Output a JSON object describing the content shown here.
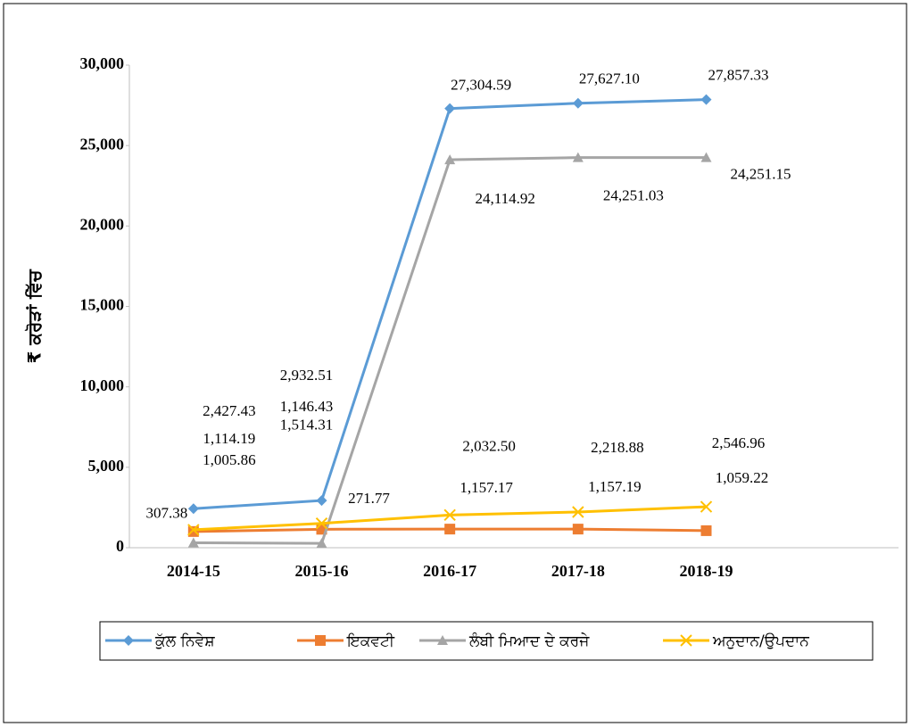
{
  "chart_data": {
    "type": "line",
    "ylabel": "₹ ਕਰੋੜਾਂ ਵਿੱਚ",
    "categories": [
      "2014-15",
      "2015-16",
      "2016-17",
      "2017-18",
      "2018-19",
      null
    ],
    "series": [
      {
        "name": "ਕੁੱਲ ਨਿਵੇਸ਼",
        "color": "#5b9bd5",
        "marker": "diamond",
        "values": [
          2427.43,
          2932.51,
          27304.59,
          27627.1,
          27857.33,
          null
        ],
        "value_labels": [
          "2,427.43",
          "2,932.51",
          "27,304.59",
          "27,627.10",
          "27,857.33",
          null
        ]
      },
      {
        "name": "ਇਕਵਟੀ",
        "color": "#ed7d31",
        "marker": "square",
        "values": [
          1005.86,
          1146.43,
          1157.17,
          1157.19,
          1059.22,
          null
        ],
        "value_labels": [
          "1,005.86",
          "1,146.43",
          "1,157.17",
          "1,157.19",
          "1,059.22",
          null
        ]
      },
      {
        "name": "ਲੰਬੀ ਮਿਆਦ ਦੇ ਕਰਜੇ",
        "color": "#a5a5a5",
        "marker": "triangle",
        "values": [
          307.38,
          271.77,
          24114.92,
          24251.03,
          24251.15,
          null
        ],
        "value_labels": [
          "307.38",
          "271.77",
          "24,114.92",
          "24,251.03",
          "24,251.15",
          null
        ]
      },
      {
        "name": "ਅਨੁਦਾਨ/ਉਪਦਾਨ",
        "color": "#ffc000",
        "marker": "x",
        "values": [
          1114.19,
          1514.31,
          2032.5,
          2218.88,
          2546.96,
          null
        ],
        "value_labels": [
          "1,114.19",
          "1,514.31",
          "2,032.50",
          "2,218.88",
          "2,546.96",
          null
        ]
      }
    ],
    "ylim": [
      0,
      30000
    ],
    "yticks": [
      0,
      {
        "value": 5000,
        "label": "5,000"
      },
      {
        "value": 10000,
        "label": "10,000"
      },
      {
        "value": 15000,
        "label": "15,000"
      },
      {
        "value": 20000,
        "label": "20,000"
      },
      {
        "value": 25000,
        "label": "25,000"
      },
      {
        "value": 30000,
        "label": "30,000"
      }
    ],
    "grid": false,
    "legend": "bottom"
  }
}
